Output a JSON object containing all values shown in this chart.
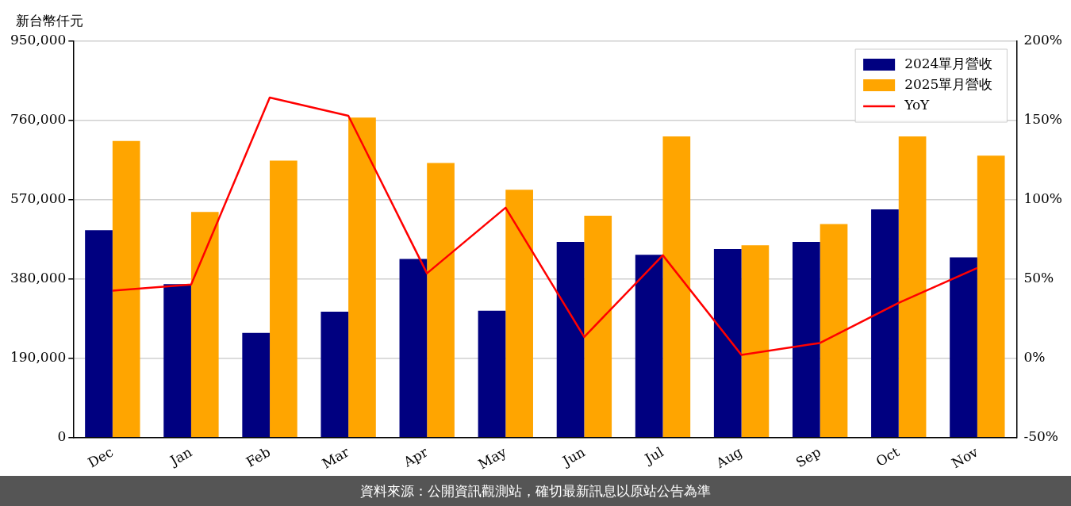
{
  "chart_data": {
    "type": "bar",
    "ylabel": "新台幣仟元",
    "categories": [
      "Dec",
      "Jan",
      "Feb",
      "Mar",
      "Apr",
      "May",
      "Jun",
      "Jul",
      "Aug",
      "Sep",
      "Oct",
      "Nov"
    ],
    "series": [
      {
        "name": "2024單月營收",
        "color": "#000080",
        "values": [
          497000,
          368000,
          251000,
          302000,
          428000,
          304000,
          469000,
          438000,
          452000,
          469000,
          547000,
          432000
        ]
      },
      {
        "name": "2025單月營收",
        "color": "#ffa500",
        "values": [
          711000,
          541000,
          664000,
          767000,
          658000,
          594000,
          532000,
          722000,
          461000,
          512000,
          722000,
          676000
        ]
      },
      {
        "name": "YoY",
        "type": "line",
        "axis": "y2",
        "color": "#ff0000",
        "values": [
          42.7,
          46.5,
          164.5,
          153,
          53.6,
          95,
          13.5,
          65,
          2.2,
          9.7,
          35,
          57
        ]
      }
    ],
    "ylim": [
      0,
      950000
    ],
    "yticks": [
      0,
      {
        "value": 190000,
        "label": "190,000"
      },
      {
        "value": 380000,
        "label": "380,000"
      },
      {
        "value": 570000,
        "label": "570,000"
      },
      {
        "value": 760000,
        "label": "760,000"
      },
      {
        "value": 950000,
        "label": "950,000"
      }
    ],
    "y2lim": [
      -50,
      200
    ],
    "y2ticks": [
      {
        "value": -50,
        "label": "-50%"
      },
      {
        "value": 0,
        "label": "0%"
      },
      {
        "value": 50,
        "label": "50%"
      },
      {
        "value": 100,
        "label": "100%"
      },
      {
        "value": 150,
        "label": "150%"
      },
      {
        "value": 200,
        "label": "200%"
      }
    ],
    "grid": "y",
    "legend": "top right",
    "marker": "none",
    "line_style": "solid",
    "annotations": [
      "資料來源：公開資訊觀測站，確切最新訊息以原站公告為準"
    ]
  }
}
